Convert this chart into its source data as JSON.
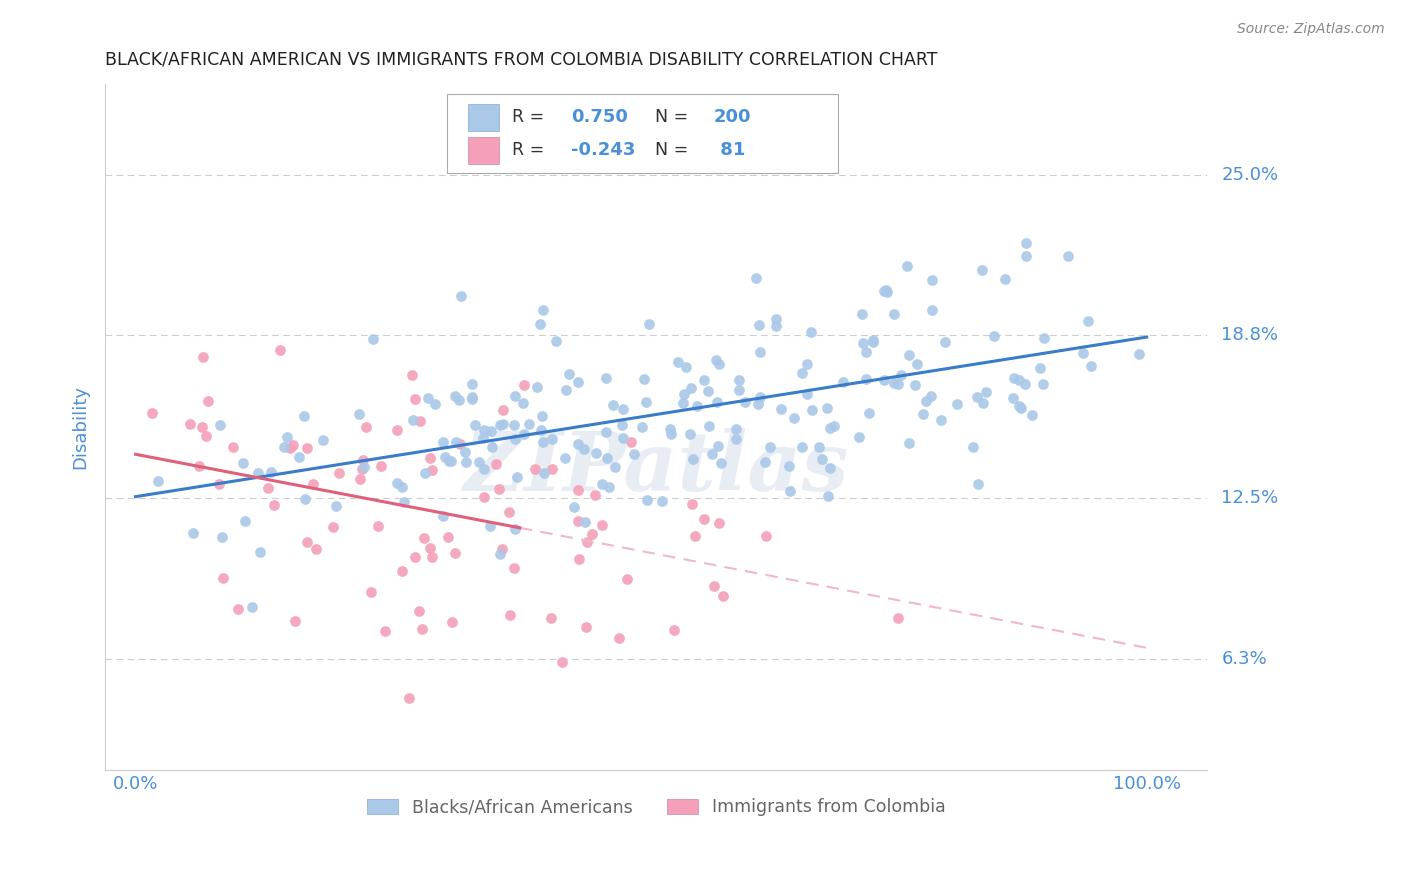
{
  "title": "BLACK/AFRICAN AMERICAN VS IMMIGRANTS FROM COLOMBIA DISABILITY CORRELATION CHART",
  "source": "Source: ZipAtlas.com",
  "ylabel": "Disability",
  "watermark": "ZIPatlas",
  "blue_R": 0.75,
  "blue_N": 200,
  "pink_R": -0.243,
  "pink_N": 81,
  "blue_color": "#aac8e8",
  "pink_color": "#f4a0b8",
  "blue_line_color": "#3a7cc8",
  "pink_line_color": "#e0607a",
  "pink_line_dash_color": "#f0b8c8",
  "title_color": "#222222",
  "axis_label_color": "#4a90d9",
  "legend_text_color": "#333333",
  "legend_value_color": "#4a90d9",
  "ytick_labels": [
    "25.0%",
    "18.8%",
    "12.5%",
    "6.3%"
  ],
  "ytick_values": [
    0.25,
    0.188,
    0.125,
    0.063
  ],
  "xlim": [
    -0.03,
    1.06
  ],
  "ylim": [
    0.02,
    0.285
  ],
  "grid_color": "#cccccc",
  "background_color": "#ffffff",
  "legend_entries": [
    "Blacks/African Americans",
    "Immigrants from Colombia"
  ],
  "blue_intercept": 0.126,
  "blue_slope": 0.062,
  "blue_noise": 0.022,
  "pink_intercept": 0.148,
  "pink_slope": -0.085,
  "pink_noise": 0.028
}
